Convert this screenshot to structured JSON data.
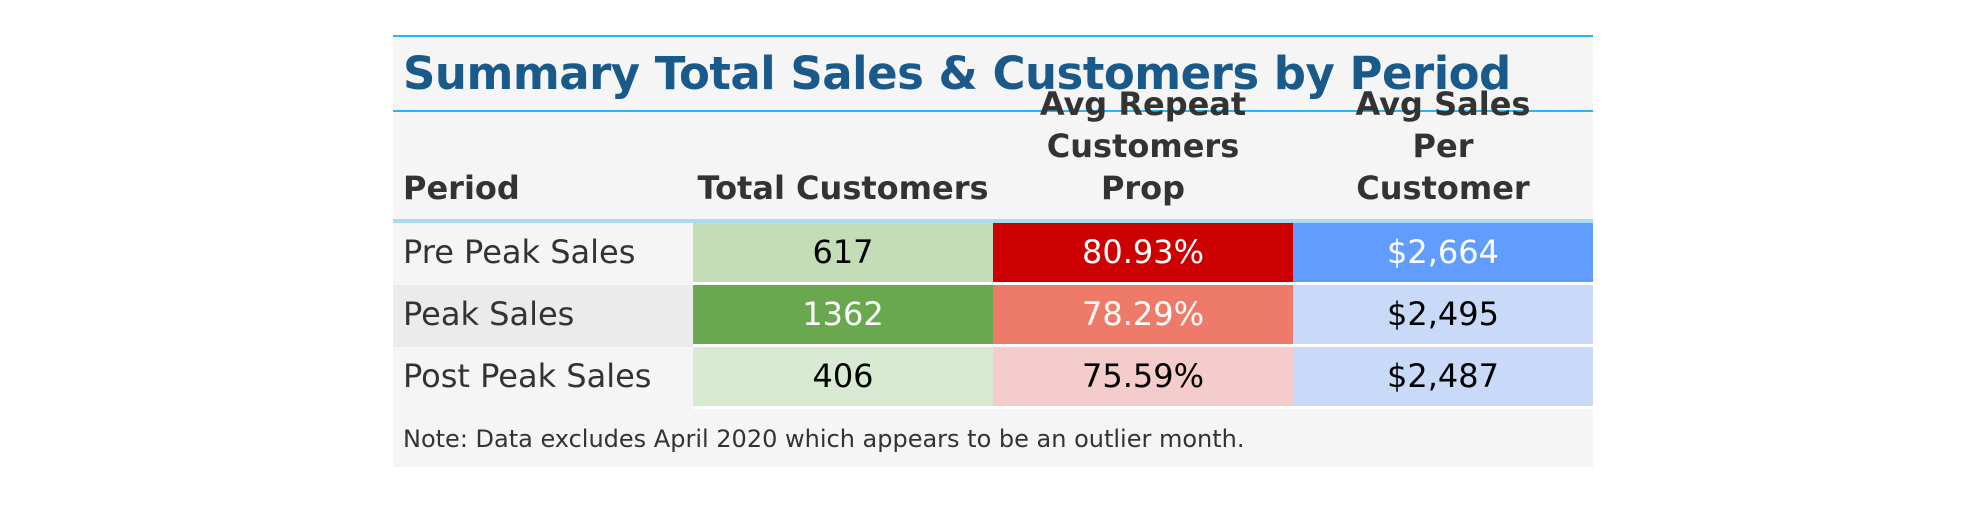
{
  "chart_data": {
    "type": "table",
    "title": "Summary Total Sales & Customers by Period",
    "columns": [
      "Period",
      "Total Customers",
      "Avg Repeat Customers Prop",
      "Avg Sales Per Customer"
    ],
    "rows": [
      {
        "period": "Pre Peak Sales",
        "total_customers": "617",
        "avg_repeat_prop": "80.93%",
        "avg_sales": "$2,664",
        "label_bg": "#f5f5f5",
        "c1_bg": "#c3ddb6",
        "c1_fg": "#000000",
        "c2_bg": "#cc0000",
        "c2_fg": "#ffffff",
        "c3_bg": "#619cff",
        "c3_fg": "#ffffff"
      },
      {
        "period": "Peak Sales",
        "total_customers": "1362",
        "avg_repeat_prop": "78.29%",
        "avg_sales": "$2,495",
        "label_bg": "#ebebeb",
        "c1_bg": "#69a84f",
        "c1_fg": "#ffffff",
        "c2_bg": "#ee7a6a",
        "c2_fg": "#ffffff",
        "c3_bg": "#c9daf8",
        "c3_fg": "#000000"
      },
      {
        "period": "Post Peak Sales",
        "total_customers": "406",
        "avg_repeat_prop": "75.59%",
        "avg_sales": "$2,487",
        "label_bg": "#f5f5f5",
        "c1_bg": "#d9ead3",
        "c1_fg": "#000000",
        "c2_bg": "#f4cccc",
        "c2_fg": "#000000",
        "c3_bg": "#c9daf8",
        "c3_fg": "#000000"
      }
    ],
    "note": "Note: Data excludes April 2020 which appears to be an outlier month."
  }
}
